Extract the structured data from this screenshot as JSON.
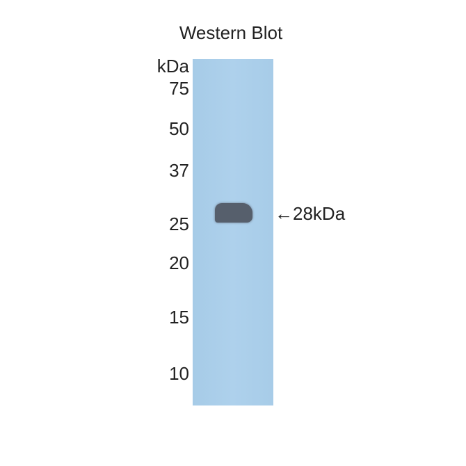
{
  "title": "Western Blot",
  "unit_label": "kDa",
  "markers": [
    "75",
    "50",
    "37",
    "25",
    "20",
    "15",
    "10"
  ],
  "band_annotation": "←28kDa",
  "colors": {
    "membrane": "#a9cde8",
    "band": "#565f6c"
  }
}
